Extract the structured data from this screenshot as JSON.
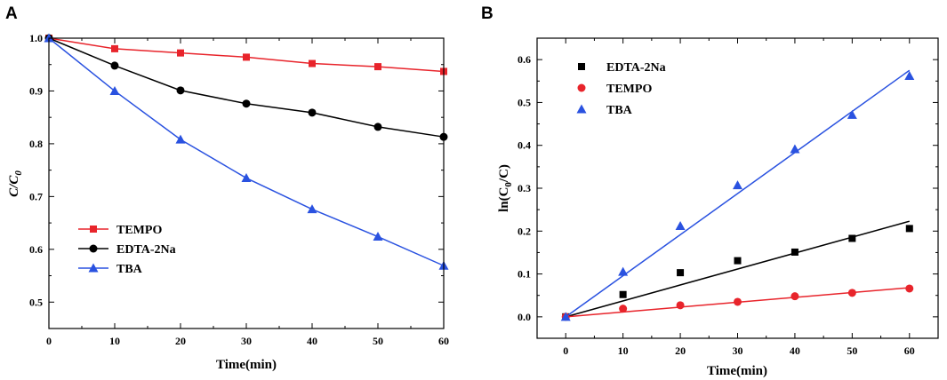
{
  "chart_data": [
    {
      "panel": "A",
      "type": "line",
      "title": "",
      "xlabel": "Time(min)",
      "ylabel": {
        "main": "C/C",
        "sub": "0"
      },
      "xlim": [
        0,
        60
      ],
      "ylim": [
        0.45,
        1.0
      ],
      "xticks": [
        0,
        10,
        20,
        30,
        40,
        50,
        60
      ],
      "yticks": [
        0.5,
        0.6,
        0.7,
        0.8,
        0.9,
        1.0
      ],
      "ytick_labels": [
        "0.5",
        "0.6",
        "0.7",
        "0.8",
        "0.9",
        "1.0"
      ],
      "legend_position": "lower-left",
      "x": [
        0,
        10,
        20,
        30,
        40,
        50,
        60
      ],
      "series": [
        {
          "name": "TEMPO",
          "color": "#e8242b",
          "marker": "square",
          "values": [
            1.0,
            0.98,
            0.972,
            0.964,
            0.952,
            0.946,
            0.937
          ]
        },
        {
          "name": "EDTA-2Na",
          "color": "#000000",
          "marker": "circle",
          "values": [
            1.0,
            0.948,
            0.901,
            0.876,
            0.859,
            0.832,
            0.813
          ]
        },
        {
          "name": "TBA",
          "color": "#2a52e0",
          "marker": "triangle",
          "values": [
            1.0,
            0.9,
            0.808,
            0.735,
            0.676,
            0.624,
            0.569
          ]
        }
      ]
    },
    {
      "panel": "B",
      "type": "scatter",
      "title": "",
      "xlabel": "Time(min)",
      "ylabel": {
        "pre": "ln(C",
        "sub": "0",
        "post": "/C)"
      },
      "xlim": [
        -5,
        65
      ],
      "ylim": [
        -0.05,
        0.65
      ],
      "xticks": [
        0,
        10,
        20,
        30,
        40,
        50,
        60
      ],
      "yticks": [
        0.0,
        0.1,
        0.2,
        0.3,
        0.4,
        0.5,
        0.6
      ],
      "ytick_labels": [
        "0.0",
        "0.1",
        "0.2",
        "0.3",
        "0.4",
        "0.5",
        "0.6"
      ],
      "legend_position": "top-left",
      "x": [
        0,
        10,
        20,
        30,
        40,
        50,
        60
      ],
      "series": [
        {
          "name": "EDTA-2Na",
          "color": "#000000",
          "marker": "square",
          "values": [
            0.0,
            0.052,
            0.103,
            0.131,
            0.151,
            0.183,
            0.206
          ],
          "fit": [
            0.0,
            0.223
          ]
        },
        {
          "name": "TEMPO",
          "color": "#e8242b",
          "marker": "circle",
          "values": [
            0.0,
            0.019,
            0.027,
            0.035,
            0.048,
            0.056,
            0.066
          ],
          "fit": [
            0.0,
            0.068
          ]
        },
        {
          "name": "TBA",
          "color": "#2a52e0",
          "marker": "triangle",
          "values": [
            0.0,
            0.105,
            0.212,
            0.307,
            0.391,
            0.471,
            0.562
          ],
          "fit": [
            0.0,
            0.575
          ]
        }
      ]
    }
  ]
}
